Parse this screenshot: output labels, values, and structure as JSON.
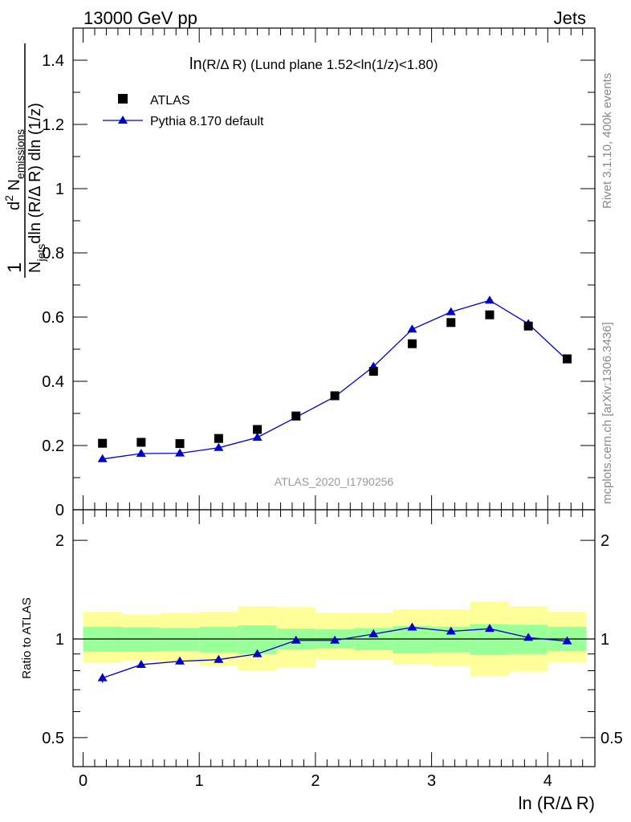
{
  "header": {
    "left": "13000 GeV pp",
    "right": "Jets"
  },
  "side_texts": {
    "rivet": "Rivet 3.1.10,  400k events",
    "mcplots": "mcplots.cern.ch [arXiv:1306.3436]"
  },
  "main_panel": {
    "title_prefix": "ln",
    "title_var": "(R/Δ R)",
    "title_rest": " (Lund plane 1.52<ln(1/z)<1.80)",
    "watermark": "ATLAS_2020_I1790256",
    "legend": {
      "atlas": "ATLAS",
      "pythia": "Pythia 8.170 default"
    },
    "ylabel": {
      "one": "1",
      "n": "N",
      "jets": "jets",
      "dln_rdr": "dln (R/Δ R) dln (1/z)",
      "d2n": "d",
      "two": "2",
      "n2": " N",
      "emissions": "emissions"
    },
    "yticks": [
      "0",
      "0.2",
      "0.4",
      "0.6",
      "0.8",
      "1",
      "1.2",
      "1.4"
    ]
  },
  "ratio_panel": {
    "ylabel": "Ratio to ATLAS",
    "yticks_left": [
      "0.5",
      "1",
      "2"
    ],
    "yticks_right": [
      "0.5",
      "1",
      "2"
    ]
  },
  "xaxis": {
    "label": "ln (R/Δ R)",
    "ticks": [
      "0",
      "1",
      "2",
      "3",
      "4"
    ]
  },
  "colors": {
    "mc": "#0000cc",
    "data": "#000000",
    "band_inner": "#99ff99",
    "band_outer": "#ffff99",
    "watermark": "#999999",
    "side_text": "#888888"
  },
  "chart_data": [
    {
      "type": "scatter",
      "panel": "main",
      "title": "ln(R/Δ R) (Lund plane 1.52<ln(1/z)<1.80)",
      "xlabel": "ln (R/Δ R)",
      "ylabel": "1/N_jets d²N_emissions / dln(R/ΔR) dln(1/z)",
      "xlim": [
        -0.15,
        4.4
      ],
      "ylim": [
        0,
        1.5
      ],
      "x_edges": [
        0.0,
        0.333,
        0.667,
        1.0,
        1.333,
        1.667,
        2.0,
        2.333,
        2.667,
        3.0,
        3.333,
        3.667,
        4.0,
        4.333
      ],
      "series": [
        {
          "name": "ATLAS",
          "marker": "square",
          "x": [
            0.167,
            0.5,
            0.833,
            1.167,
            1.5,
            1.833,
            2.167,
            2.5,
            2.833,
            3.167,
            3.5,
            3.833,
            4.167
          ],
          "values": [
            0.207,
            0.21,
            0.206,
            0.222,
            0.25,
            0.292,
            0.355,
            0.431,
            0.517,
            0.583,
            0.607,
            0.572,
            0.47
          ]
        },
        {
          "name": "Pythia 8.170 default",
          "marker": "triangle",
          "x": [
            0.167,
            0.5,
            0.833,
            1.167,
            1.5,
            1.833,
            2.167,
            2.5,
            2.833,
            3.167,
            3.5,
            3.833,
            4.167
          ],
          "values": [
            0.158,
            0.175,
            0.176,
            0.193,
            0.225,
            0.288,
            0.352,
            0.446,
            0.562,
            0.616,
            0.652,
            0.579,
            0.466
          ]
        }
      ]
    },
    {
      "type": "line",
      "panel": "ratio",
      "ylabel": "Ratio to ATLAS",
      "xlabel": "ln (R/Δ R)",
      "yscale": "log",
      "ylim": [
        0.4,
        2.5
      ],
      "x_edges": [
        0.0,
        0.333,
        0.667,
        1.0,
        1.333,
        1.667,
        2.0,
        2.333,
        2.667,
        3.0,
        3.333,
        3.667,
        4.0,
        4.333
      ],
      "inner_band": {
        "lo": [
          0.915,
          0.915,
          0.92,
          0.91,
          0.9,
          0.93,
          0.935,
          0.925,
          0.905,
          0.91,
          0.895,
          0.9,
          0.92
        ],
        "hi": [
          1.09,
          1.085,
          1.08,
          1.09,
          1.1,
          1.075,
          1.07,
          1.08,
          1.095,
          1.09,
          1.11,
          1.105,
          1.09
        ]
      },
      "outer_band": {
        "lo": [
          0.845,
          0.86,
          0.85,
          0.83,
          0.8,
          0.82,
          0.865,
          0.865,
          0.835,
          0.825,
          0.77,
          0.795,
          0.85
        ],
        "hi": [
          1.21,
          1.19,
          1.2,
          1.21,
          1.26,
          1.25,
          1.2,
          1.2,
          1.23,
          1.23,
          1.3,
          1.26,
          1.21
        ]
      },
      "series": [
        {
          "name": "Pythia 8.170 default",
          "x": [
            0.167,
            0.5,
            0.833,
            1.167,
            1.5,
            1.833,
            2.167,
            2.5,
            2.833,
            3.167,
            3.5,
            3.833,
            4.167
          ],
          "values": [
            0.76,
            0.835,
            0.855,
            0.865,
            0.9,
            0.99,
            0.99,
            1.035,
            1.085,
            1.055,
            1.075,
            1.01,
            0.985
          ],
          "errors": [
            0.025,
            0.02,
            0.02,
            0.02,
            0.02,
            0.0,
            0.0,
            0.0,
            0.0,
            0.0,
            0.0,
            0.0,
            0.0
          ]
        }
      ]
    }
  ]
}
